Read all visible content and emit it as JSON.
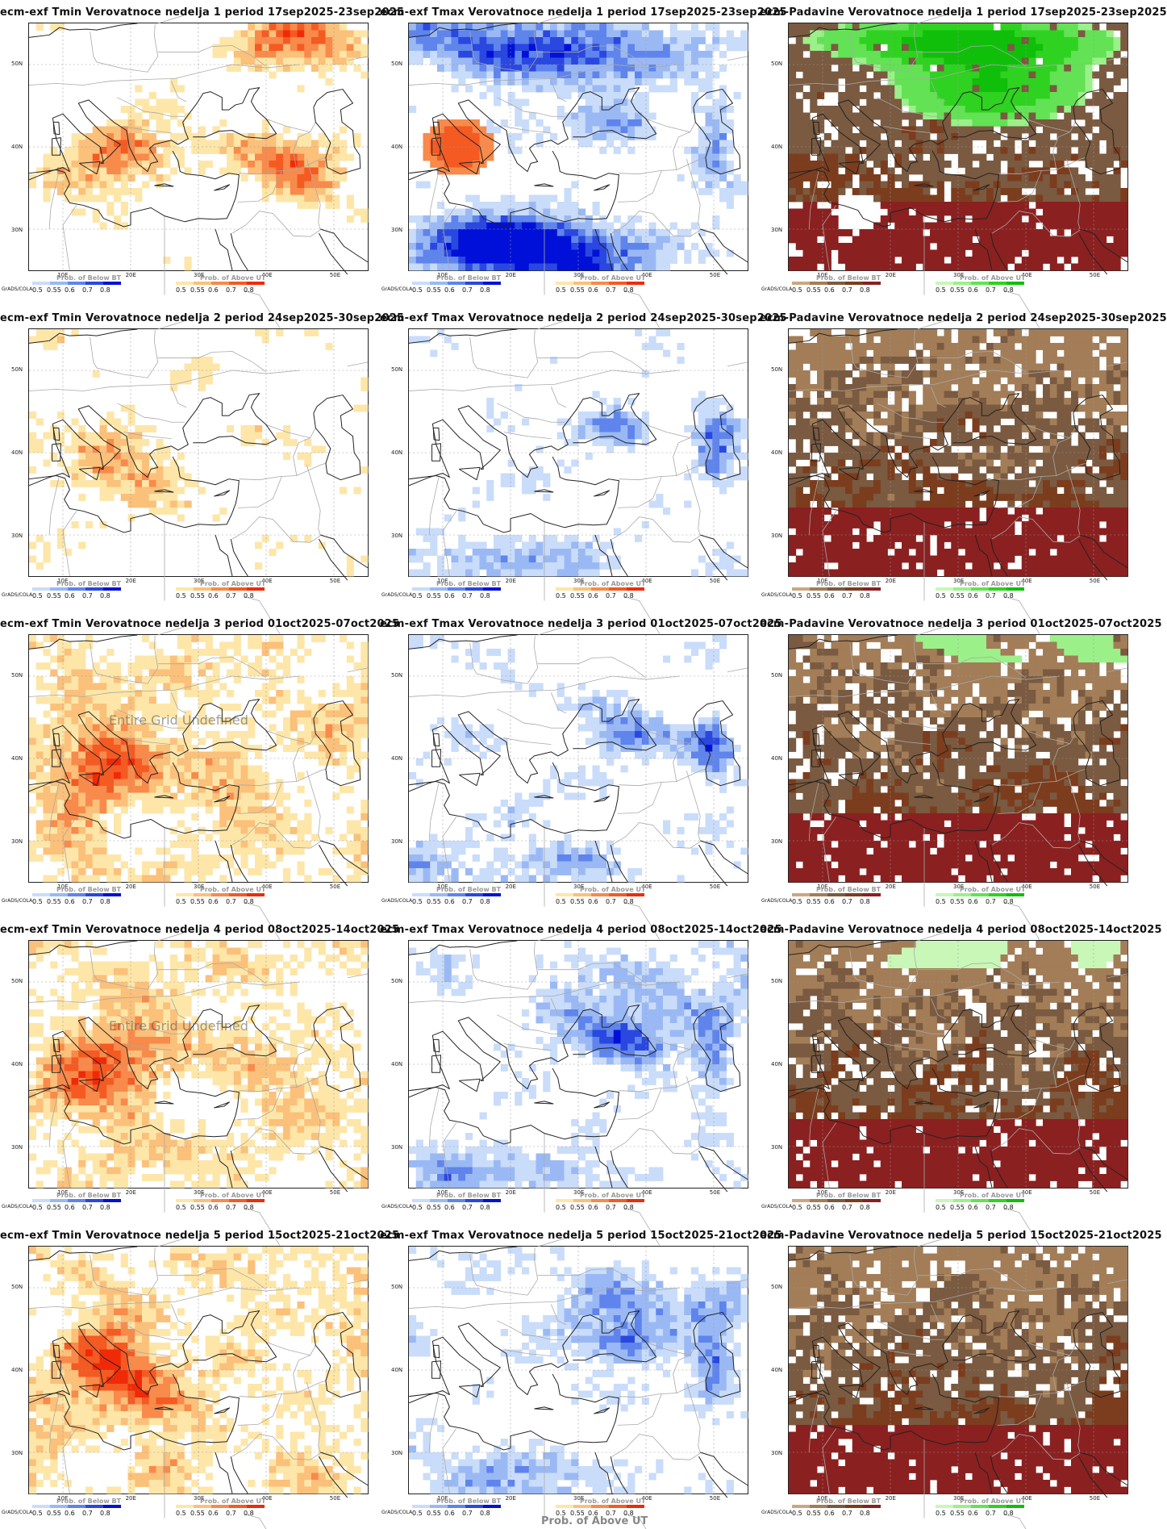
{
  "colors": {
    "below": [
      "#c9dcfa",
      "#9ab9f4",
      "#5f84ec",
      "#2a47e0",
      "#0010d8"
    ],
    "above": [
      "#fde6a8",
      "#fbc07a",
      "#f88a4b",
      "#f45a22",
      "#f02a08"
    ],
    "dry": [
      "#c8a882",
      "#a27d57",
      "#7a5a40",
      "#7b3d1e",
      "#8b2020"
    ],
    "wet": [
      "#c8f7b8",
      "#9bf08a",
      "#62e254",
      "#2fd220",
      "#10bf0a"
    ]
  },
  "legend": {
    "below_title": "Prob. of Below BT",
    "above_title": "Prob. of Above UT",
    "ticks": [
      "0.5",
      "0.55",
      "0.6",
      "0.7",
      "0.8"
    ],
    "grads_label": "GrADS/COLA"
  },
  "axes": {
    "lat_labels": [
      "50N",
      "40N",
      "30N"
    ],
    "lon_labels": [
      "10E",
      "20E",
      "30E",
      "40E",
      "50E"
    ]
  },
  "annotations": {
    "undefined_text": "Entire Grid Undefined",
    "bottom_label": "Prob. of Above UT"
  },
  "panels": [
    {
      "title": "ecm-exf Tmin Verovatnoce nedelja 1 period 17sep2025-23sep2025",
      "variable": "tmin",
      "week": 1
    },
    {
      "title": "ecm-exf Tmax Verovatnoce nedelja 1 period 17sep2025-23sep2025",
      "variable": "tmax",
      "week": 1
    },
    {
      "title": "ecm-Padavine Verovatnoce nedelja 1 period 17sep2025-23sep2025",
      "variable": "precip",
      "week": 1
    },
    {
      "title": "ecm-exf Tmin Verovatnoce nedelja 2 period 24sep2025-30sep2025",
      "variable": "tmin",
      "week": 2
    },
    {
      "title": "ecm-exf Tmax Verovatnoce nedelja 2 period 24sep2025-30sep2025",
      "variable": "tmax",
      "week": 2
    },
    {
      "title": "ecm-Padavine Verovatnoce nedelja 2 period 24sep2025-30sep2025",
      "variable": "precip",
      "week": 2
    },
    {
      "title": "ecm-exf Tmin Verovatnoce nedelja 3 period 01oct2025-07oct2025",
      "variable": "tmin",
      "week": 3,
      "undefined": true
    },
    {
      "title": "ecm-exf Tmax Verovatnoce nedelja 3 period 01oct2025-07oct2025",
      "variable": "tmax",
      "week": 3
    },
    {
      "title": "ecm-Padavine Verovatnoce nedelja 3 period 01oct2025-07oct2025",
      "variable": "precip",
      "week": 3
    },
    {
      "title": "ecm-exf Tmin Verovatnoce nedelja 4 period 08oct2025-14oct2025",
      "variable": "tmin",
      "week": 4,
      "undefined": true
    },
    {
      "title": "ecm-exf Tmax Verovatnoce nedelja 4 period 08oct2025-14oct2025",
      "variable": "tmax",
      "week": 4
    },
    {
      "title": "ecm-Padavine Verovatnoce nedelja 4 period 08oct2025-14oct2025",
      "variable": "precip",
      "week": 4
    },
    {
      "title": "ecm-exf Tmin Verovatnoce nedelja 5 period 15oct2025-21oct2025",
      "variable": "tmin",
      "week": 5
    },
    {
      "title": "ecm-exf Tmax Verovatnoce nedelja 5 period 15oct2025-21oct2025",
      "variable": "tmax",
      "week": 5,
      "bottom_label": true
    },
    {
      "title": "ecm-Padavine Verovatnoce nedelja 5 period 15oct2025-21oct2025",
      "variable": "precip",
      "week": 5
    }
  ]
}
